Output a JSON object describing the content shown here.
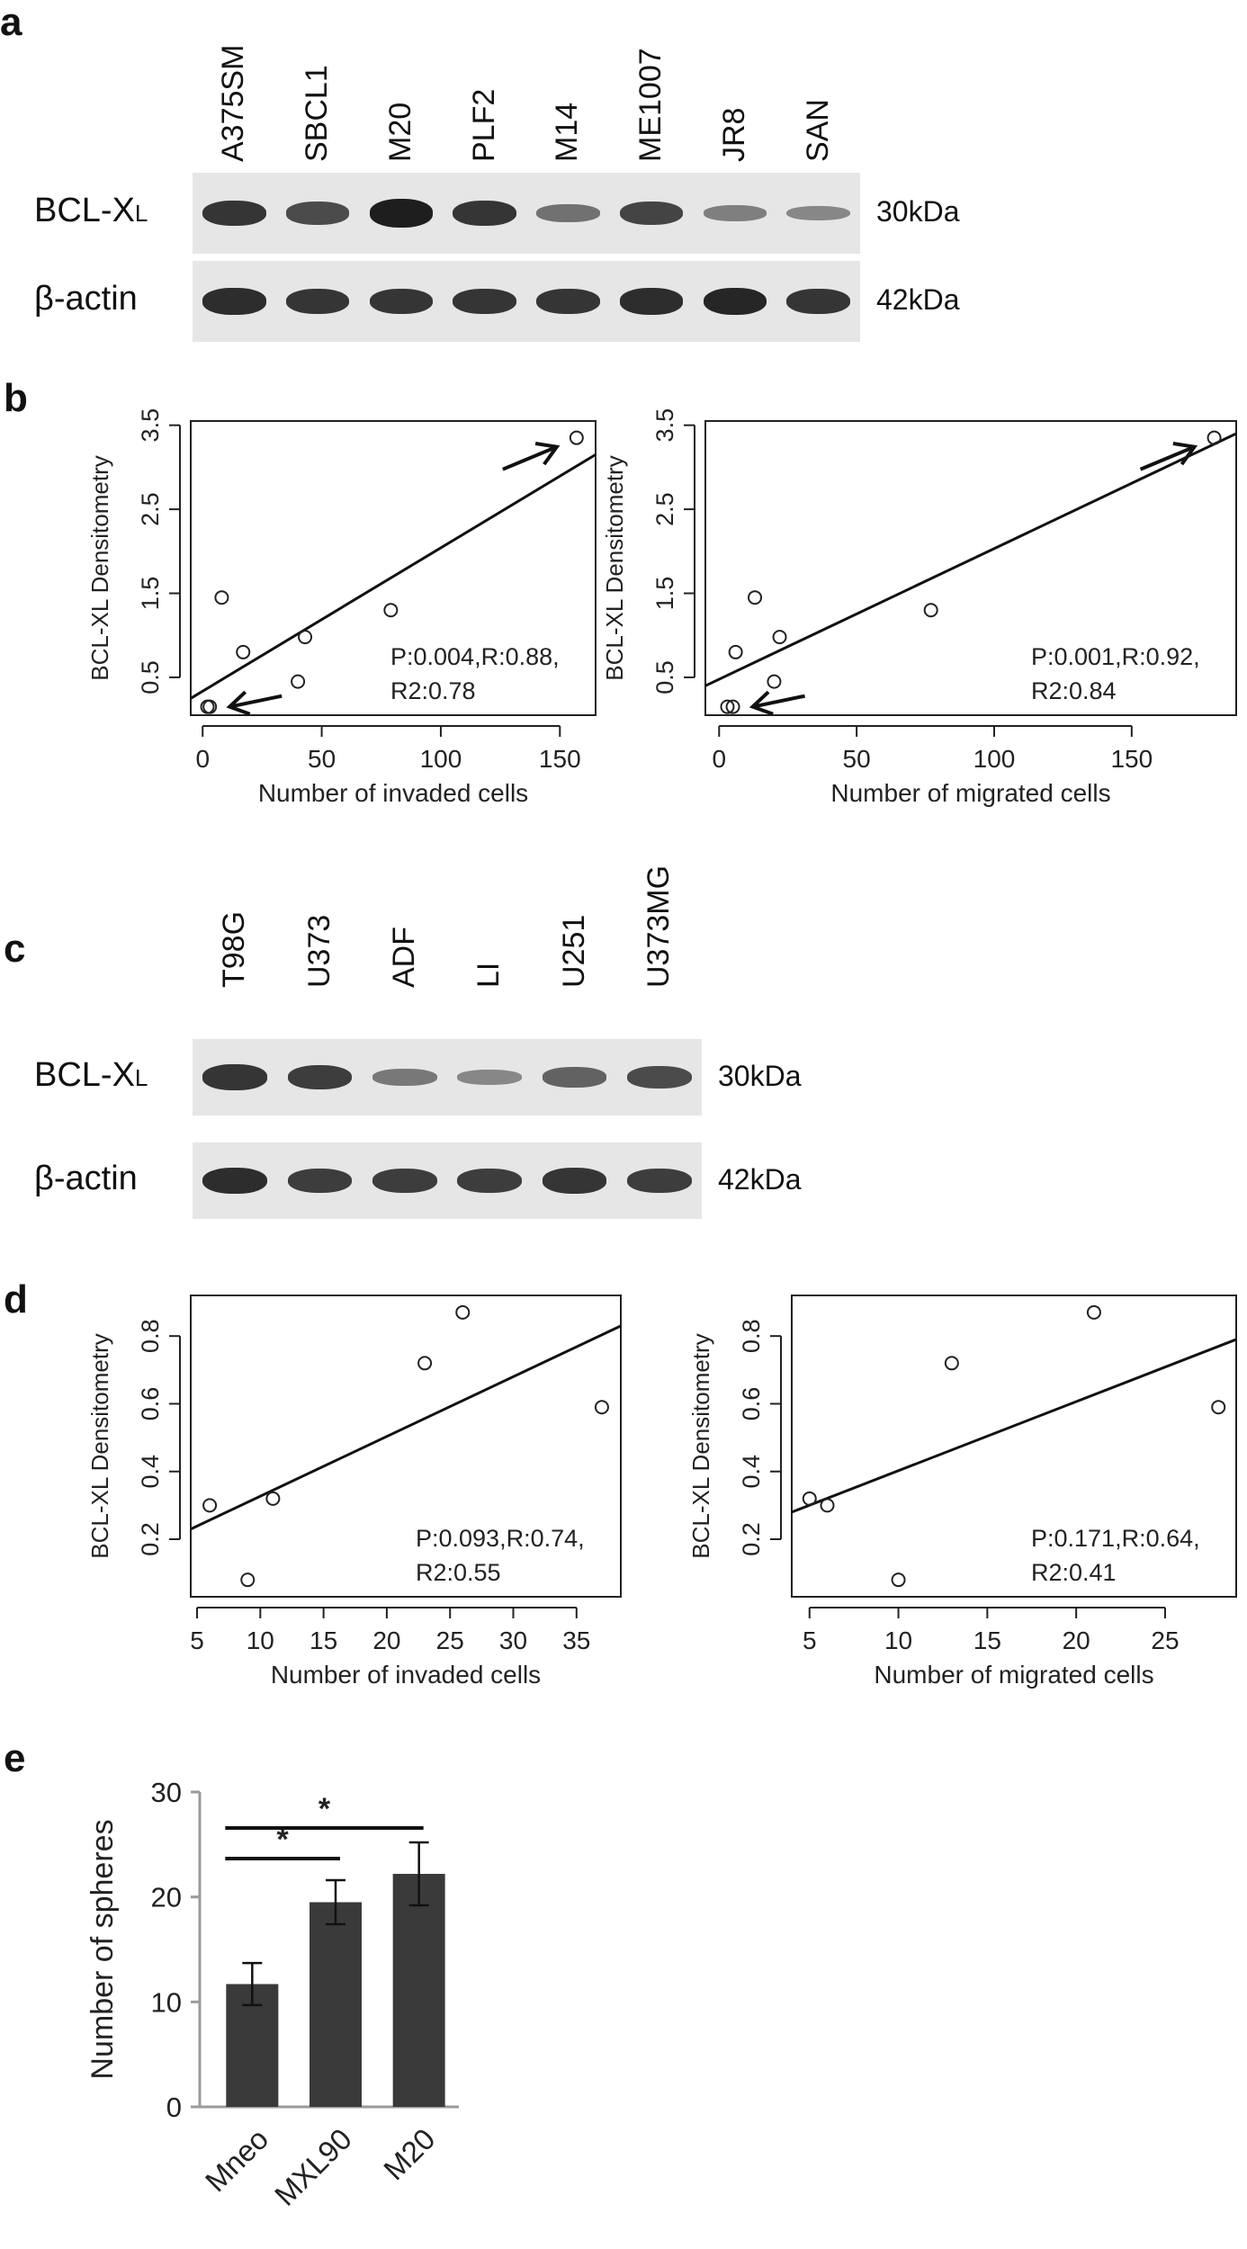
{
  "panels": [
    "a",
    "b",
    "c",
    "d",
    "e"
  ],
  "panel_a": {
    "lanes": [
      "A375SM",
      "SBCL1",
      "M20",
      "PLF2",
      "M14",
      "ME1007",
      "JR8",
      "SAN"
    ],
    "rows": [
      {
        "label_main": "BCL-X",
        "label_sub": "L",
        "kda": "30kDa",
        "intensity": [
          0.85,
          0.7,
          1.0,
          0.85,
          0.45,
          0.75,
          0.35,
          0.3
        ]
      },
      {
        "label": "β-actin",
        "kda": "42kDa",
        "intensity": [
          0.9,
          0.85,
          0.85,
          0.85,
          0.85,
          0.9,
          0.95,
          0.85
        ]
      }
    ]
  },
  "panel_c": {
    "lanes": [
      "T98G",
      "U373",
      "ADF",
      "LI",
      "U251",
      "U373MG"
    ],
    "rows": [
      {
        "label_main": "BCL-X",
        "label_sub": "L",
        "kda": "30kDa",
        "intensity": [
          0.85,
          0.8,
          0.4,
          0.3,
          0.55,
          0.7
        ]
      },
      {
        "label": "β-actin",
        "kda": "42kDa",
        "intensity": [
          0.9,
          0.8,
          0.8,
          0.8,
          0.85,
          0.8
        ]
      }
    ]
  },
  "chart_data": [
    {
      "type": "scatter",
      "id": "b-left",
      "xlabel": "Number of invaded cells",
      "ylabel": "BCL-XL Densitometry",
      "xlim": [
        -5,
        165
      ],
      "ylim": [
        0.05,
        3.55
      ],
      "xticks": [
        0,
        50,
        100,
        150
      ],
      "yticks": [
        0.5,
        1.5,
        2.5,
        3.5
      ],
      "ytick_labels": [
        "0.5",
        "1.5",
        "2.5",
        "3.5"
      ],
      "x": [
        2,
        3,
        8,
        17,
        40,
        43,
        79,
        157
      ],
      "y": [
        0.15,
        0.15,
        1.45,
        0.8,
        0.45,
        0.98,
        1.3,
        3.35
      ],
      "fit": {
        "x": [
          -5,
          165
        ],
        "y": [
          0.25,
          3.15
        ]
      },
      "annotation": [
        "P:0.004,R:0.88,",
        "R2:0.78"
      ],
      "arrows": [
        {
          "x": 157,
          "y": 3.35,
          "from": "lower-left"
        },
        {
          "x": 3,
          "y": 0.15,
          "from": "right"
        }
      ]
    },
    {
      "type": "scatter",
      "id": "b-right",
      "xlabel": "Number of migrated cells",
      "ylabel": "BCL-XL Densitometry",
      "xlim": [
        -5,
        188
      ],
      "ylim": [
        0.05,
        3.55
      ],
      "xticks": [
        0,
        50,
        100,
        150
      ],
      "yticks": [
        0.5,
        1.5,
        2.5,
        3.5
      ],
      "ytick_labels": [
        "0.5",
        "1.5",
        "2.5",
        "3.5"
      ],
      "x": [
        3,
        5,
        6,
        13,
        20,
        22,
        77,
        180
      ],
      "y": [
        0.15,
        0.15,
        0.8,
        1.45,
        0.45,
        0.98,
        1.3,
        3.35
      ],
      "fit": {
        "x": [
          -5,
          188
        ],
        "y": [
          0.4,
          3.4
        ]
      },
      "annotation": [
        "P:0.001,R:0.92,",
        "R2:0.84"
      ],
      "arrows": [
        {
          "x": 180,
          "y": 3.35,
          "from": "lower-left"
        },
        {
          "x": 5,
          "y": 0.15,
          "from": "right"
        }
      ]
    },
    {
      "type": "scatter",
      "id": "d-left",
      "xlabel": "Number of invaded cells",
      "ylabel": "BCL-XL Densitometry",
      "xlim": [
        4.5,
        38.5
      ],
      "ylim": [
        0.03,
        0.92
      ],
      "xticks": [
        5,
        10,
        15,
        20,
        25,
        30,
        35
      ],
      "yticks": [
        0.2,
        0.4,
        0.6,
        0.8
      ],
      "ytick_labels": [
        "0.2",
        "0.4",
        "0.6",
        "0.8"
      ],
      "x": [
        6,
        9,
        11,
        23,
        26,
        37
      ],
      "y": [
        0.3,
        0.08,
        0.32,
        0.72,
        0.87,
        0.59
      ],
      "fit": {
        "x": [
          4.5,
          38.5
        ],
        "y": [
          0.23,
          0.83
        ]
      },
      "annotation": [
        "P:0.093,R:0.74,",
        "R2:0.55"
      ],
      "arrows": []
    },
    {
      "type": "scatter",
      "id": "d-right",
      "xlabel": "Number of migrated cells",
      "ylabel": "BCL-XL Densitometry",
      "xlim": [
        4,
        29
      ],
      "ylim": [
        0.03,
        0.92
      ],
      "xticks": [
        5,
        10,
        15,
        20,
        25
      ],
      "yticks": [
        0.2,
        0.4,
        0.6,
        0.8
      ],
      "ytick_labels": [
        "0.2",
        "0.4",
        "0.6",
        "0.8"
      ],
      "x": [
        5,
        6,
        10,
        13,
        21,
        28
      ],
      "y": [
        0.32,
        0.3,
        0.08,
        0.72,
        0.87,
        0.59
      ],
      "fit": {
        "x": [
          4,
          29
        ],
        "y": [
          0.28,
          0.79
        ]
      },
      "annotation": [
        "P:0.171,R:0.64,",
        "R2:0.41"
      ],
      "arrows": []
    },
    {
      "type": "bar",
      "id": "e",
      "categories": [
        "Mneo",
        "MXL90",
        "M20"
      ],
      "values": [
        11.7,
        19.5,
        22.2
      ],
      "errors": [
        2.0,
        2.1,
        3.0
      ],
      "ylabel": "Number of spheres",
      "ylim": [
        0,
        30
      ],
      "yticks": [
        0,
        10,
        20,
        30
      ],
      "significance": [
        {
          "from": 0,
          "to": 1,
          "label": "*"
        },
        {
          "from": 0,
          "to": 2,
          "label": "*"
        }
      ]
    }
  ]
}
